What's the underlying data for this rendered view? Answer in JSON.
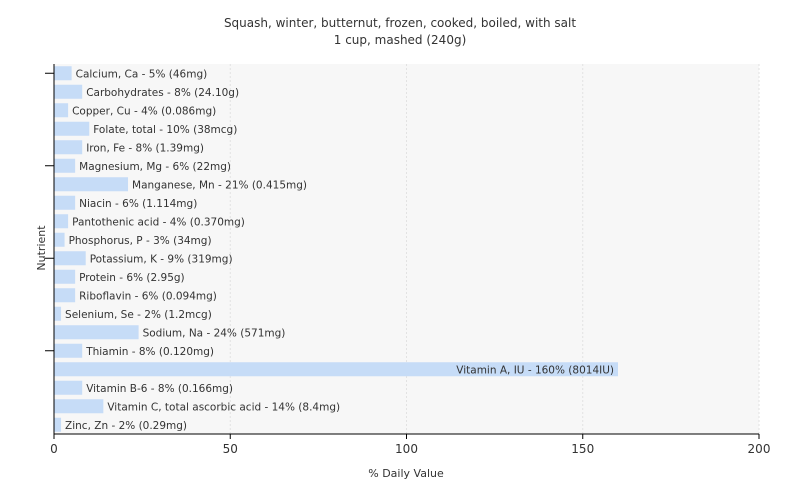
{
  "chart_data": {
    "type": "bar",
    "orientation": "horizontal",
    "title": "Squash, winter, butternut, frozen, cooked, boiled, with salt",
    "subtitle": "1 cup, mashed (240g)",
    "xlabel": "% Daily Value",
    "ylabel": "Nutrient",
    "xlim": [
      0,
      200
    ],
    "xticks": [
      0,
      50,
      100,
      150,
      200
    ],
    "grid": true,
    "bar_color": "#c6dcf7",
    "categories": [
      "Calcium, Ca",
      "Carbohydrates",
      "Copper, Cu",
      "Folate, total",
      "Iron, Fe",
      "Magnesium, Mg",
      "Manganese, Mn",
      "Niacin",
      "Pantothenic acid",
      "Phosphorus, P",
      "Potassium, K",
      "Protein",
      "Riboflavin",
      "Selenium, Se",
      "Sodium, Na",
      "Thiamin",
      "Vitamin A, IU",
      "Vitamin B-6",
      "Vitamin C, total ascorbic acid",
      "Zinc, Zn"
    ],
    "values": [
      5,
      8,
      4,
      10,
      8,
      6,
      21,
      6,
      4,
      3,
      9,
      6,
      6,
      2,
      24,
      8,
      160,
      8,
      14,
      2
    ],
    "labels": [
      "Calcium, Ca - 5% (46mg)",
      "Carbohydrates - 8% (24.10g)",
      "Copper, Cu - 4% (0.086mg)",
      "Folate, total - 10% (38mcg)",
      "Iron, Fe - 8% (1.39mg)",
      "Magnesium, Mg - 6% (22mg)",
      "Manganese, Mn - 21% (0.415mg)",
      "Niacin - 6% (1.114mg)",
      "Pantothenic acid - 4% (0.370mg)",
      "Phosphorus, P - 3% (34mg)",
      "Potassium, K - 9% (319mg)",
      "Protein - 6% (2.95g)",
      "Riboflavin - 6% (0.094mg)",
      "Selenium, Se - 2% (1.2mcg)",
      "Sodium, Na - 24% (571mg)",
      "Thiamin - 8% (0.120mg)",
      "Vitamin A, IU - 160% (8014IU)",
      "Vitamin B-6 - 8% (0.166mg)",
      "Vitamin C, total ascorbic acid - 14% (8.4mg)",
      "Zinc, Zn - 2% (0.29mg)"
    ]
  }
}
